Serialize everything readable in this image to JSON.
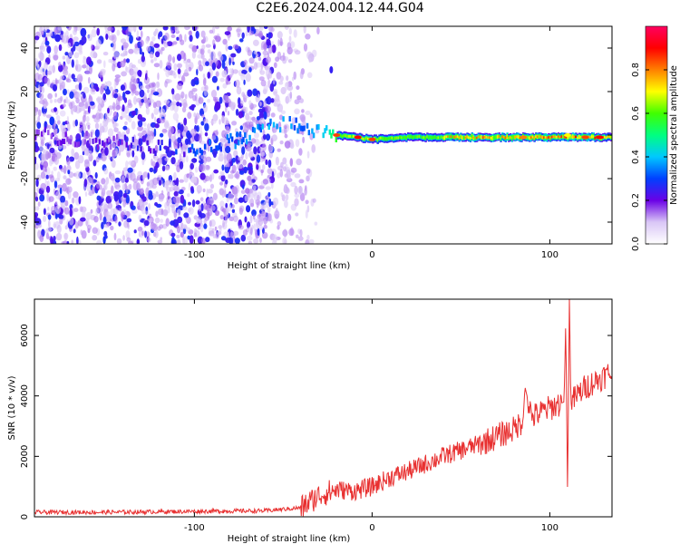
{
  "title": "C2E6.2024.004.12.44.G04",
  "chart_data": [
    {
      "type": "heatmap",
      "title": "",
      "xlabel": "Height of straight line (km)",
      "ylabel": "Frequency (Hz)",
      "xlim": [
        -190,
        135
      ],
      "ylim": [
        -50,
        50
      ],
      "xticks": [
        -100,
        0,
        100
      ],
      "yticks": [
        -40,
        -20,
        0,
        20,
        40
      ],
      "grid": false,
      "colorbar": {
        "label": "Normalized spectral amplitude",
        "range": [
          0,
          1
        ],
        "ticks": [
          "0.0",
          "0.2",
          "0.4",
          "0.6",
          "0.8"
        ],
        "colors": [
          "#ffffff",
          "#d9c6f6",
          "#6a00e6",
          "#0040ff",
          "#00c8ff",
          "#00ff80",
          "#40ff00",
          "#ffff00",
          "#ff8000",
          "#ff0000",
          "#ff0060"
        ]
      },
      "ridge": {
        "x": [
          -190,
          -150,
          -120,
          -100,
          -80,
          -60,
          -50,
          -40,
          -30,
          -20,
          -10,
          0,
          20,
          40,
          60,
          80,
          100,
          110,
          135
        ],
        "y": [
          0,
          -3,
          -6,
          -6,
          -3,
          3,
          5,
          4,
          1,
          0,
          -1,
          -2,
          -1,
          -1,
          -1,
          -1,
          -1,
          -1,
          -1
        ],
        "amplitude": [
          0.12,
          0.15,
          0.22,
          0.25,
          0.3,
          0.35,
          0.35,
          0.3,
          0.35,
          0.55,
          0.6,
          0.6,
          0.55,
          0.55,
          0.6,
          0.6,
          0.62,
          0.65,
          0.65
        ]
      }
    },
    {
      "type": "line",
      "title": "",
      "xlabel": "Height of straight line (km)",
      "ylabel": "SNR (10 * v/v)",
      "xlim": [
        -190,
        135
      ],
      "ylim": [
        0,
        7200
      ],
      "xticks": [
        -100,
        0,
        100
      ],
      "yticks": [
        0,
        2000,
        4000,
        6000
      ],
      "grid": false,
      "series": [
        {
          "color": "#e83030",
          "x": [
            -190,
            -150,
            -100,
            -60,
            -40,
            -30,
            -20,
            -10,
            0,
            10,
            20,
            40,
            60,
            80,
            85,
            86,
            90,
            100,
            108,
            109,
            110,
            111,
            112,
            120,
            135
          ],
          "values": [
            150,
            150,
            180,
            200,
            300,
            700,
            900,
            850,
            1000,
            1300,
            1500,
            2000,
            2400,
            2900,
            3200,
            4300,
            3300,
            3600,
            3800,
            6500,
            700,
            7200,
            3800,
            4300,
            4800
          ]
        }
      ]
    }
  ]
}
